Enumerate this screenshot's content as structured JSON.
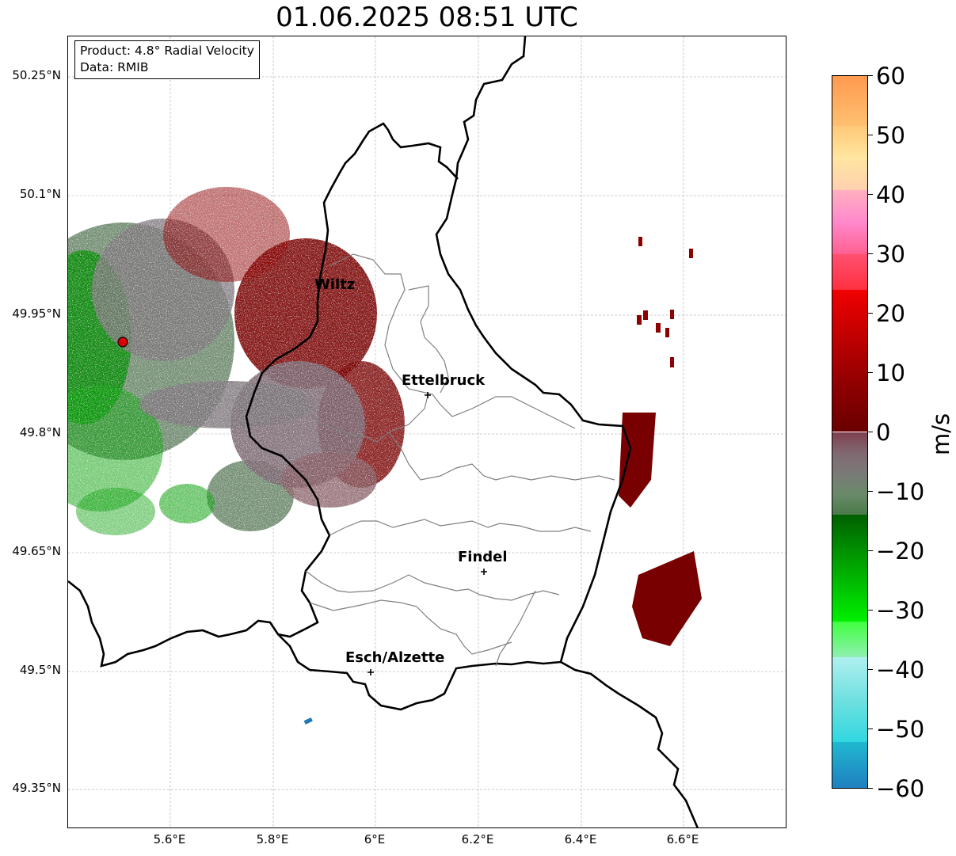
{
  "title": "01.06.2025 08:51 UTC",
  "info_box": {
    "line1": "Product: 4.8° Radial Velocity",
    "line2": "Data: RMIB"
  },
  "axes": {
    "lat_labels": [
      "50.25°N",
      "50.1°N",
      "49.95°N",
      "49.8°N",
      "49.65°N",
      "49.5°N",
      "49.35°N"
    ],
    "lon_labels": [
      "5.6°E",
      "5.8°E",
      "6°E",
      "6.2°E",
      "6.4°E",
      "6.6°E"
    ],
    "gridlines": "dashed light gray"
  },
  "cities": [
    {
      "name": "Wiltz",
      "icon": "plus-marker"
    },
    {
      "name": "Ettelbruck",
      "icon": "plus-marker"
    },
    {
      "name": "Findel",
      "icon": "plus-marker"
    },
    {
      "name": "Esch/Alzette",
      "icon": "plus-marker"
    }
  ],
  "radar_site": {
    "icon": "red-dot-marker"
  },
  "colorbar": {
    "unit": "m/s",
    "tick_labels": [
      "60",
      "50",
      "40",
      "30",
      "20",
      "10",
      "0",
      "−10",
      "−20",
      "−30",
      "−40",
      "−50",
      "−60"
    ],
    "range": [
      -60,
      60
    ]
  },
  "colors": {
    "border": "#000000",
    "canton_lines": "#808080",
    "inbound_strong": "#00e000",
    "outbound_strong": "#780000",
    "near_zero": "#7a7378"
  }
}
